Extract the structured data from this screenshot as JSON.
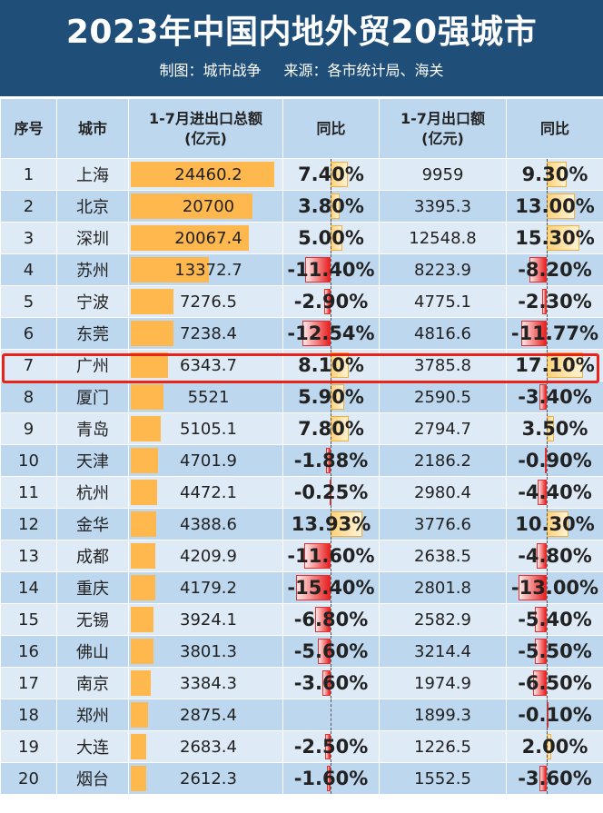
{
  "header": {
    "title": "2023年中国内地外贸20强城市",
    "credit": "制图：城市战争",
    "source": "来源：各市统计局、海关"
  },
  "columns": [
    "序号",
    "城市",
    "1-7月进出口总额\n(亿元)",
    "同比",
    "1-7月出口额\n(亿元)",
    "同比"
  ],
  "highlight_row": "广州",
  "colors": {
    "header_bg": "#1f4e79",
    "bar": "#ffb84d",
    "positive": "#ffd27a",
    "negative": "#e82020",
    "highlight": "#e8241b"
  },
  "chart_data": {
    "type": "table",
    "title": "2023年中国内地外贸20强城市",
    "rows": [
      {
        "rank": "1",
        "city": "上海",
        "total": "24460.2",
        "total_yoy": "7.40%",
        "export": "9959",
        "export_yoy": "9.30%"
      },
      {
        "rank": "2",
        "city": "北京",
        "total": "20700",
        "total_yoy": "3.80%",
        "export": "3395.3",
        "export_yoy": "13.00%"
      },
      {
        "rank": "3",
        "city": "深圳",
        "total": "20067.4",
        "total_yoy": "5.00%",
        "export": "12548.8",
        "export_yoy": "15.30%"
      },
      {
        "rank": "4",
        "city": "苏州",
        "total": "13372.7",
        "total_yoy": "-11.40%",
        "export": "8223.9",
        "export_yoy": "-8.20%"
      },
      {
        "rank": "5",
        "city": "宁波",
        "total": "7276.5",
        "total_yoy": "-2.90%",
        "export": "4775.1",
        "export_yoy": "-2.30%"
      },
      {
        "rank": "6",
        "city": "东莞",
        "total": "7238.4",
        "total_yoy": "-12.54%",
        "export": "4816.6",
        "export_yoy": "-11.77%"
      },
      {
        "rank": "7",
        "city": "广州",
        "total": "6343.7",
        "total_yoy": "8.10%",
        "export": "3785.8",
        "export_yoy": "17.10%"
      },
      {
        "rank": "8",
        "city": "厦门",
        "total": "5521",
        "total_yoy": "5.90%",
        "export": "2590.5",
        "export_yoy": "-3.40%"
      },
      {
        "rank": "9",
        "city": "青岛",
        "total": "5105.1",
        "total_yoy": "7.80%",
        "export": "2794.7",
        "export_yoy": "3.50%"
      },
      {
        "rank": "10",
        "city": "天津",
        "total": "4701.9",
        "total_yoy": "-1.88%",
        "export": "2186.2",
        "export_yoy": "-0.90%"
      },
      {
        "rank": "11",
        "city": "杭州",
        "total": "4472.1",
        "total_yoy": "-0.25%",
        "export": "2980.4",
        "export_yoy": "-4.40%"
      },
      {
        "rank": "12",
        "city": "金华",
        "total": "4388.6",
        "total_yoy": "13.93%",
        "export": "3776.6",
        "export_yoy": "10.30%"
      },
      {
        "rank": "13",
        "city": "成都",
        "total": "4209.9",
        "total_yoy": "-11.60%",
        "export": "2638.5",
        "export_yoy": "-4.80%"
      },
      {
        "rank": "14",
        "city": "重庆",
        "total": "4179.2",
        "total_yoy": "-15.40%",
        "export": "2801.8",
        "export_yoy": "-13.00%"
      },
      {
        "rank": "15",
        "city": "无锡",
        "total": "3924.1",
        "total_yoy": "-6.80%",
        "export": "2582.9",
        "export_yoy": "-5.40%"
      },
      {
        "rank": "16",
        "city": "佛山",
        "total": "3801.3",
        "total_yoy": "-5.60%",
        "export": "3214.4",
        "export_yoy": "-5.50%"
      },
      {
        "rank": "17",
        "city": "南京",
        "total": "3384.3",
        "total_yoy": "-3.60%",
        "export": "1974.9",
        "export_yoy": "-6.50%"
      },
      {
        "rank": "18",
        "city": "郑州",
        "total": "2875.4",
        "total_yoy": "",
        "export": "1899.3",
        "export_yoy": "-0.10%"
      },
      {
        "rank": "19",
        "city": "大连",
        "total": "2683.4",
        "total_yoy": "-2.50%",
        "export": "1226.5",
        "export_yoy": "2.00%"
      },
      {
        "rank": "20",
        "city": "烟台",
        "total": "2612.3",
        "total_yoy": "-1.60%",
        "export": "1552.5",
        "export_yoy": "-3.60%"
      }
    ]
  }
}
